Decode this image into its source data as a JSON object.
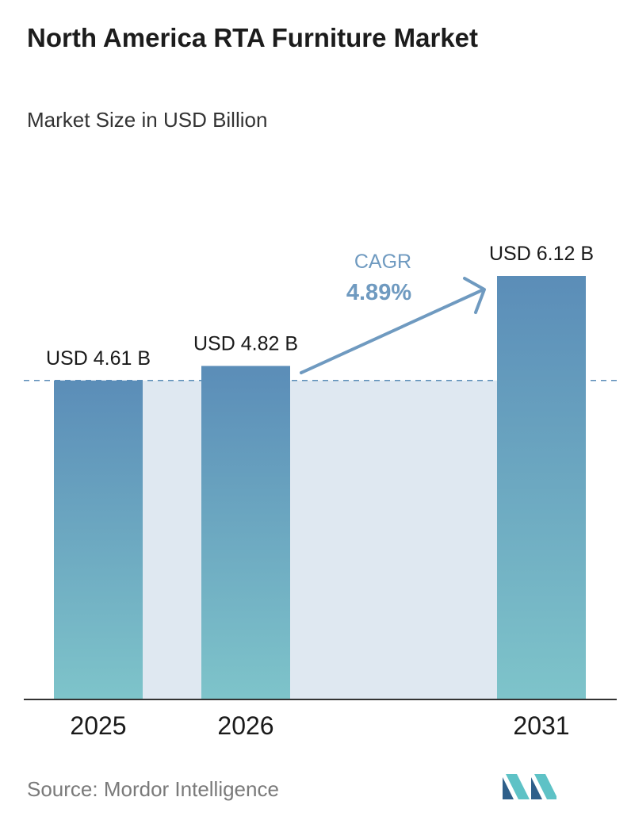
{
  "header": {
    "title": "North America RTA Furniture Market",
    "subtitle": "Market Size in USD Billion"
  },
  "chart_data": {
    "type": "bar",
    "categories": [
      "2025",
      "2026",
      "2031"
    ],
    "values": [
      4.61,
      4.82,
      6.12
    ],
    "data_labels": [
      "USD 4.61 B",
      "USD 4.82 B",
      "USD 6.12 B"
    ],
    "title": "North America RTA Furniture Market",
    "subtitle": "Market Size in USD Billion",
    "xlabel": "",
    "ylabel": "",
    "ylim": [
      0,
      6.12
    ],
    "grid": false,
    "reference_line": {
      "value": 4.61,
      "style": "dashed"
    },
    "annotation": {
      "label": "CAGR",
      "value": "4.89%"
    }
  },
  "footer": {
    "source": "Source: Mordor Intelligence"
  },
  "colors": {
    "bar_top": "#5b8db8",
    "bar_bottom": "#7ec4ca",
    "band": "#dfe8f1",
    "cagr": "#6f9ac0",
    "dashed": "#5b8db8",
    "axis": "#333333",
    "logo_dark": "#2e5f8a",
    "logo_light": "#5ec2c6"
  }
}
